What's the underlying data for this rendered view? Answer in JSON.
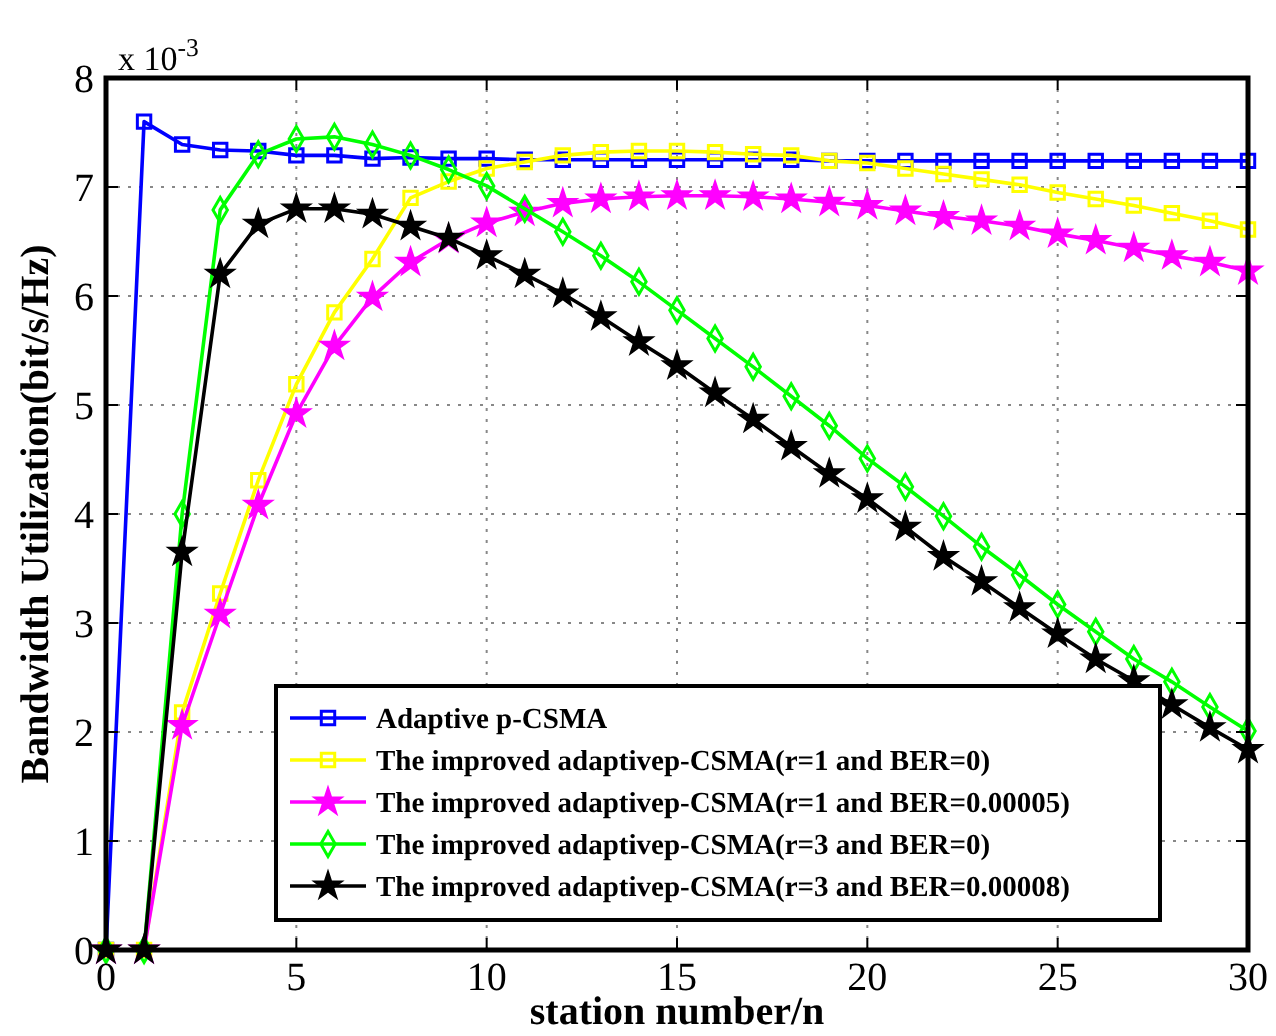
{
  "chart_data": {
    "type": "line",
    "xlabel": "station number/n",
    "ylabel": "Bandwidth Utilization(bit/s/Hz)",
    "annotations": [
      "x 10$^{-3}$"
    ],
    "x": [
      0,
      1,
      2,
      3,
      4,
      5,
      6,
      7,
      8,
      9,
      10,
      11,
      12,
      13,
      14,
      15,
      16,
      17,
      18,
      19,
      20,
      21,
      22,
      23,
      24,
      25,
      26,
      27,
      28,
      29,
      30
    ],
    "xlim": [
      0,
      30
    ],
    "xticks": [
      0,
      5,
      10,
      15,
      20,
      25,
      30
    ],
    "ylim": [
      0,
      8
    ],
    "yticks": [
      0,
      1,
      2,
      3,
      4,
      5,
      6,
      7,
      8
    ],
    "grid": true,
    "legend": "bottom right",
    "series": [
      {
        "name": "Adaptive p-CSMA",
        "color": "#0000ff",
        "marker": "square",
        "values": [
          0,
          7.6,
          7.39,
          7.34,
          7.33,
          7.29,
          7.29,
          7.26,
          7.27,
          7.26,
          7.26,
          7.25,
          7.25,
          7.25,
          7.25,
          7.25,
          7.25,
          7.25,
          7.25,
          7.24,
          7.24,
          7.24,
          7.24,
          7.24,
          7.24,
          7.24,
          7.24,
          7.24,
          7.24,
          7.24,
          7.24
        ]
      },
      {
        "name": "The improved adaptivep-CSMA(r=1 and BER=0)",
        "color": "#ffff00",
        "marker": "square",
        "values": [
          0,
          0,
          2.18,
          3.27,
          4.31,
          5.19,
          5.85,
          6.34,
          6.9,
          7.05,
          7.17,
          7.23,
          7.29,
          7.32,
          7.33,
          7.33,
          7.32,
          7.3,
          7.29,
          7.24,
          7.22,
          7.17,
          7.12,
          7.07,
          7.02,
          6.95,
          6.89,
          6.83,
          6.76,
          6.69,
          6.61
        ]
      },
      {
        "name": "The improved adaptivep-CSMA(r=1 and BER=0.00005)",
        "color": "#ff00ff",
        "marker": "star",
        "values": [
          0,
          0,
          2.06,
          3.08,
          4.08,
          4.92,
          5.54,
          5.99,
          6.31,
          6.52,
          6.67,
          6.77,
          6.85,
          6.89,
          6.91,
          6.92,
          6.92,
          6.91,
          6.89,
          6.86,
          6.83,
          6.78,
          6.73,
          6.69,
          6.64,
          6.57,
          6.51,
          6.44,
          6.37,
          6.31,
          6.23
        ]
      },
      {
        "name": "The improved adaptivep-CSMA(r=3 and BER=0)",
        "color": "#00ff00",
        "marker": "diamond",
        "values": [
          0,
          0,
          4.0,
          6.79,
          7.3,
          7.44,
          7.46,
          7.39,
          7.29,
          7.16,
          7.01,
          6.8,
          6.59,
          6.37,
          6.13,
          5.87,
          5.61,
          5.35,
          5.08,
          4.81,
          4.51,
          4.25,
          3.98,
          3.7,
          3.44,
          3.17,
          2.92,
          2.67,
          2.46,
          2.23,
          2.01
        ]
      },
      {
        "name": "The improved adaptivep-CSMA(r=3 and BER=0.00008)",
        "color": "#000000",
        "marker": "star",
        "values": [
          0,
          0,
          3.65,
          6.2,
          6.66,
          6.8,
          6.8,
          6.75,
          6.64,
          6.53,
          6.37,
          6.2,
          6.02,
          5.81,
          5.58,
          5.36,
          5.11,
          4.87,
          4.62,
          4.37,
          4.14,
          3.88,
          3.61,
          3.38,
          3.14,
          2.9,
          2.67,
          2.47,
          2.25,
          2.04,
          1.84
        ]
      }
    ]
  }
}
